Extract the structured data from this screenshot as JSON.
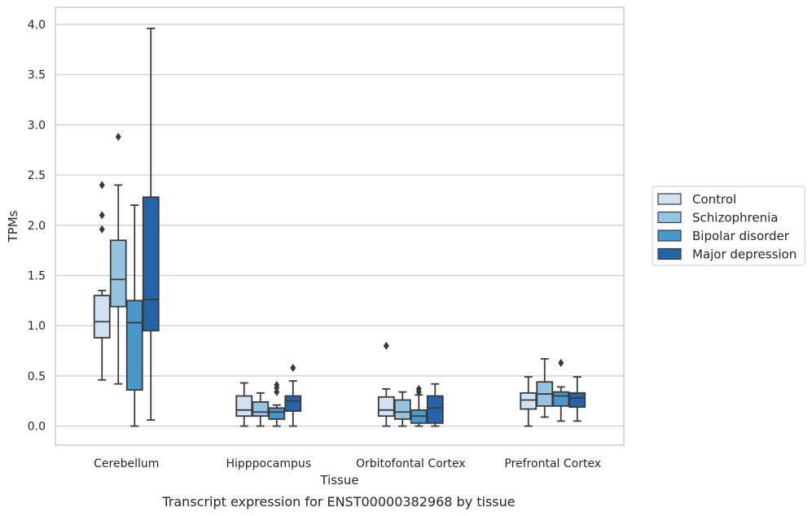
{
  "caption": "Transcript expression for ENST00000382968 by tissue",
  "chart_data": {
    "type": "boxplot",
    "title": "",
    "xlabel": "Tissue",
    "ylabel": "TPMs",
    "ylim": [
      -0.19,
      4.17
    ],
    "yticks": [
      "0.0",
      "0.5",
      "1.0",
      "1.5",
      "2.0",
      "2.5",
      "3.0",
      "3.5",
      "4.0"
    ],
    "grid": "horizontal",
    "legend_position": "right",
    "categories": [
      "Cerebellum",
      "Hipppocampus",
      "Orbitofontal Cortex",
      "Prefrontal Cortex"
    ],
    "series": [
      {
        "name": "Control",
        "color": "#d0e1f2",
        "boxes": [
          {
            "whisker_low": 0.46,
            "q1": 0.88,
            "median": 1.04,
            "q3": 1.3,
            "whisker_high": 1.35,
            "outliers": [
              1.96,
              2.1,
              2.4
            ]
          },
          {
            "whisker_low": 0.0,
            "q1": 0.1,
            "median": 0.16,
            "q3": 0.3,
            "whisker_high": 0.43,
            "outliers": []
          },
          {
            "whisker_low": 0.0,
            "q1": 0.1,
            "median": 0.16,
            "q3": 0.29,
            "whisker_high": 0.37,
            "outliers": [
              0.8
            ]
          },
          {
            "whisker_low": 0.0,
            "q1": 0.17,
            "median": 0.26,
            "q3": 0.33,
            "whisker_high": 0.49,
            "outliers": []
          }
        ]
      },
      {
        "name": "Schizophrenia",
        "color": "#94c4df",
        "boxes": [
          {
            "whisker_low": 0.42,
            "q1": 1.19,
            "median": 1.46,
            "q3": 1.85,
            "whisker_high": 2.4,
            "outliers": [
              2.88
            ]
          },
          {
            "whisker_low": 0.0,
            "q1": 0.1,
            "median": 0.14,
            "q3": 0.24,
            "whisker_high": 0.33,
            "outliers": []
          },
          {
            "whisker_low": 0.0,
            "q1": 0.07,
            "median": 0.14,
            "q3": 0.26,
            "whisker_high": 0.34,
            "outliers": []
          },
          {
            "whisker_low": 0.09,
            "q1": 0.2,
            "median": 0.32,
            "q3": 0.44,
            "whisker_high": 0.67,
            "outliers": []
          }
        ]
      },
      {
        "name": "Bipolar disorder",
        "color": "#4a98c9",
        "boxes": [
          {
            "whisker_low": 0.0,
            "q1": 0.36,
            "median": 1.03,
            "q3": 1.25,
            "whisker_high": 2.2,
            "outliers": []
          },
          {
            "whisker_low": 0.0,
            "q1": 0.07,
            "median": 0.14,
            "q3": 0.18,
            "whisker_high": 0.21,
            "outliers": [
              0.34,
              0.38,
              0.41
            ]
          },
          {
            "whisker_low": 0.0,
            "q1": 0.03,
            "median": 0.1,
            "q3": 0.16,
            "whisker_high": 0.31,
            "outliers": [
              0.34,
              0.37
            ]
          },
          {
            "whisker_low": 0.05,
            "q1": 0.2,
            "median": 0.3,
            "q3": 0.34,
            "whisker_high": 0.39,
            "outliers": [
              0.63
            ]
          }
        ]
      },
      {
        "name": "Major depression",
        "color": "#2365a8",
        "boxes": [
          {
            "whisker_low": 0.06,
            "q1": 0.95,
            "median": 1.26,
            "q3": 2.28,
            "whisker_high": 3.96,
            "outliers": []
          },
          {
            "whisker_low": 0.0,
            "q1": 0.15,
            "median": 0.25,
            "q3": 0.3,
            "whisker_high": 0.45,
            "outliers": [
              0.58
            ]
          },
          {
            "whisker_low": 0.0,
            "q1": 0.03,
            "median": 0.18,
            "q3": 0.3,
            "whisker_high": 0.42,
            "outliers": []
          },
          {
            "whisker_low": 0.05,
            "q1": 0.19,
            "median": 0.28,
            "q3": 0.33,
            "whisker_high": 0.49,
            "outliers": []
          }
        ]
      }
    ]
  }
}
